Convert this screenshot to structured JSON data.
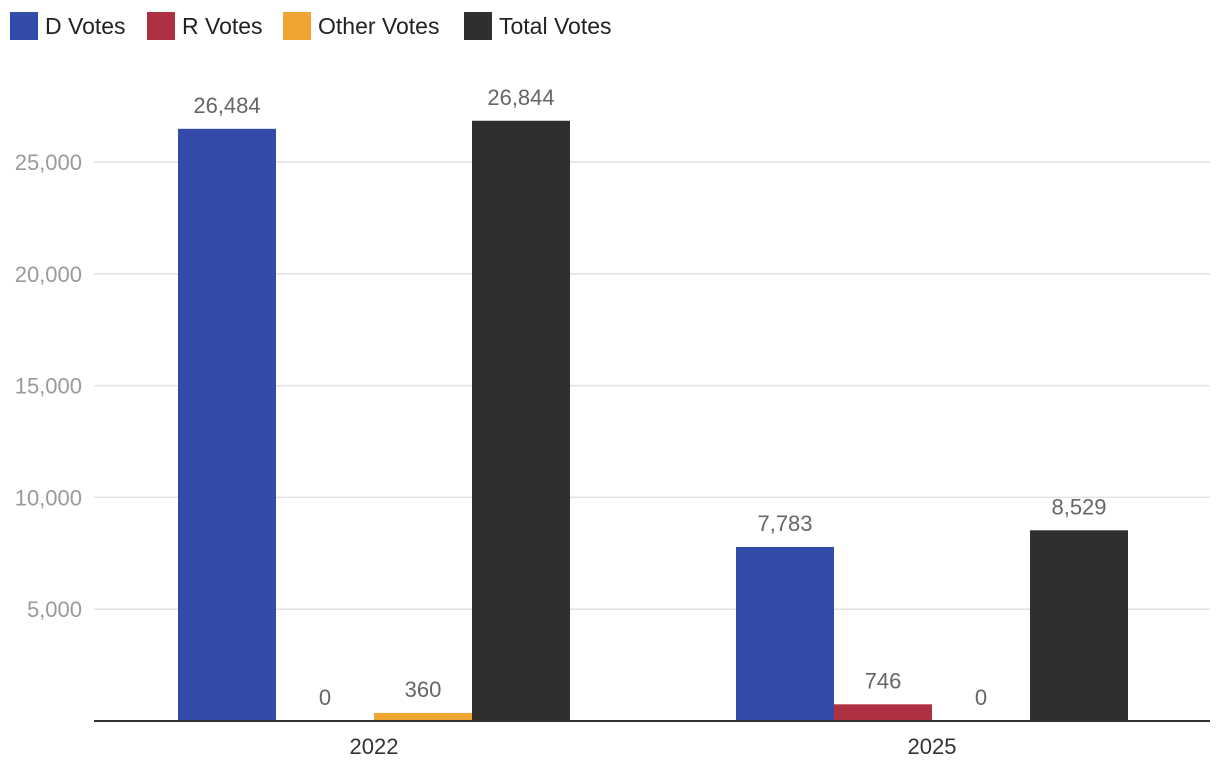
{
  "chart_data": {
    "type": "bar",
    "categories": [
      "2022",
      "2025"
    ],
    "series": [
      {
        "name": "D Votes",
        "color": "#334ca9",
        "values": [
          26484,
          7783
        ],
        "labels": [
          "26,484",
          "7,783"
        ]
      },
      {
        "name": "R Votes",
        "color": "#ad3142",
        "values": [
          0,
          746
        ],
        "labels": [
          "0",
          "746"
        ]
      },
      {
        "name": "Other Votes",
        "color": "#f0a431",
        "values": [
          360,
          0
        ],
        "labels": [
          "360",
          "0"
        ]
      },
      {
        "name": "Total Votes",
        "color": "#2f2f2f",
        "values": [
          26844,
          8529
        ],
        "labels": [
          "26,844",
          "8,529"
        ]
      }
    ],
    "y_ticks": [
      5000,
      10000,
      15000,
      20000,
      25000
    ],
    "y_tick_labels": [
      "5,000",
      "10,000",
      "15,000",
      "20,000",
      "25,000"
    ],
    "ylim": [
      0,
      29000
    ],
    "legend_position": "top-left",
    "grid": true,
    "title": "",
    "xlabel": "",
    "ylabel": ""
  }
}
